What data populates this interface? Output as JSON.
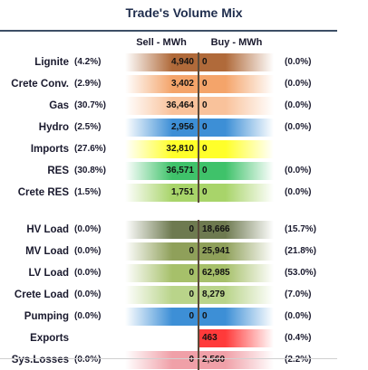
{
  "title": "Trade's Volume Mix",
  "headers": {
    "sell": "Sell - MWh",
    "buy": "Buy - MWh"
  },
  "chart_data": {
    "type": "table",
    "title": "Trade's Volume Mix",
    "columns": [
      "Sell - MWh",
      "Buy - MWh"
    ],
    "rows": [
      {
        "label": "Lignite",
        "sell_pct": "(4.2%)",
        "sell": "4,940",
        "buy": "0",
        "buy_pct": "(0.0%)",
        "sell_value": 4940,
        "buy_value": 0,
        "color": "#b06a3a"
      },
      {
        "label": "Crete Conv.",
        "sell_pct": "(2.9%)",
        "sell": "3,402",
        "buy": "0",
        "buy_pct": "(0.0%)",
        "sell_value": 3402,
        "buy_value": 0,
        "color": "#f4a46a"
      },
      {
        "label": "Gas",
        "sell_pct": "(30.7%)",
        "sell": "36,464",
        "buy": "0",
        "buy_pct": "(0.0%)",
        "sell_value": 36464,
        "buy_value": 0,
        "color": "#f9c29b"
      },
      {
        "label": "Hydro",
        "sell_pct": "(2.5%)",
        "sell": "2,956",
        "buy": "0",
        "buy_pct": "(0.0%)",
        "sell_value": 2956,
        "buy_value": 0,
        "color": "#3d8fd6"
      },
      {
        "label": "Imports",
        "sell_pct": "(27.6%)",
        "sell": "32,810",
        "buy": "0",
        "buy_pct": "",
        "sell_value": 32810,
        "buy_value": 0,
        "color": "#ffff2a"
      },
      {
        "label": "RES",
        "sell_pct": "(30.8%)",
        "sell": "36,571",
        "buy": "0",
        "buy_pct": "(0.0%)",
        "sell_value": 36571,
        "buy_value": 0,
        "color": "#3fc26a"
      },
      {
        "label": "Crete RES",
        "sell_pct": "(1.5%)",
        "sell": "1,751",
        "buy": "0",
        "buy_pct": "(0.0%)",
        "sell_value": 1751,
        "buy_value": 0,
        "color": "#a8d46a"
      },
      {
        "label": "HV Load",
        "sell_pct": "(0.0%)",
        "sell": "0",
        "buy": "18,666",
        "buy_pct": "(15.7%)",
        "sell_value": 0,
        "buy_value": 18666,
        "color": "#6e7a50"
      },
      {
        "label": "MV Load",
        "sell_pct": "(0.0%)",
        "sell": "0",
        "buy": "25,941",
        "buy_pct": "(21.8%)",
        "sell_value": 0,
        "buy_value": 25941,
        "color": "#8fa05a"
      },
      {
        "label": "LV Load",
        "sell_pct": "(0.0%)",
        "sell": "0",
        "buy": "62,985",
        "buy_pct": "(53.0%)",
        "sell_value": 0,
        "buy_value": 62985,
        "color": "#a6c06a"
      },
      {
        "label": "Crete Load",
        "sell_pct": "(0.0%)",
        "sell": "0",
        "buy": "8,279",
        "buy_pct": "(7.0%)",
        "sell_value": 0,
        "buy_value": 8279,
        "color": "#b9d48a"
      },
      {
        "label": "Pumping",
        "sell_pct": "(0.0%)",
        "sell": "0",
        "buy": "0",
        "buy_pct": "(0.0%)",
        "sell_value": 0,
        "buy_value": 0,
        "color": "#3d8fd6"
      },
      {
        "label": "Exports",
        "sell_pct": "",
        "sell": "",
        "buy": "463",
        "buy_pct": "(0.4%)",
        "sell_value": 0,
        "buy_value": 463,
        "color": "#ff3a3a"
      },
      {
        "label": "Sys.Losses",
        "sell_pct": "(0.0%)",
        "sell": "0",
        "buy": "2,560",
        "buy_pct": "(2.2%)",
        "sell_value": 0,
        "buy_value": 2560,
        "color": "#f0a0a8"
      }
    ]
  }
}
